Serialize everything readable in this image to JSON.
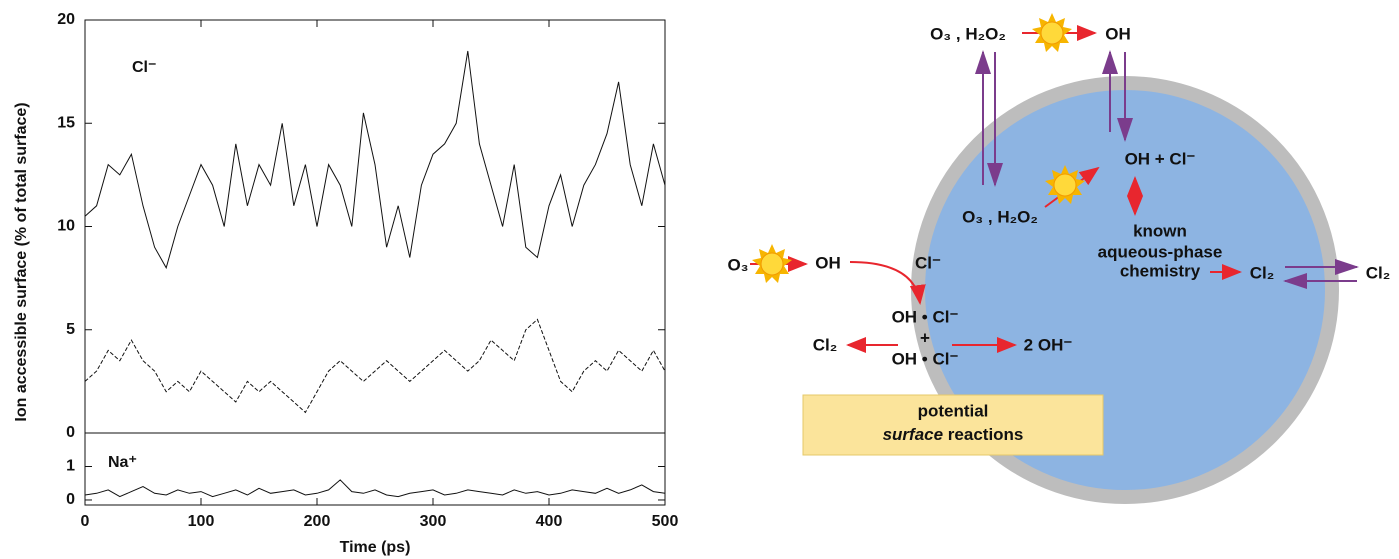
{
  "chart_data": [
    {
      "type": "line",
      "ylabel": "Ion accessible surface (% of total surface)",
      "annotation": "Cl⁻",
      "xlim": [
        0,
        500
      ],
      "ylim": [
        0,
        20
      ],
      "yticks": [
        0,
        5,
        10,
        15,
        20
      ],
      "x": [
        0,
        10,
        20,
        30,
        40,
        50,
        60,
        70,
        80,
        90,
        100,
        110,
        120,
        130,
        140,
        150,
        160,
        170,
        180,
        190,
        200,
        210,
        220,
        230,
        240,
        250,
        260,
        270,
        280,
        290,
        300,
        310,
        320,
        330,
        340,
        350,
        360,
        370,
        380,
        390,
        400,
        410,
        420,
        430,
        440,
        450,
        460,
        470,
        480,
        490,
        500
      ],
      "series": [
        {
          "color": "#111111",
          "dash": false,
          "values": [
            10.5,
            11,
            13,
            12.5,
            13.5,
            11,
            9,
            8,
            10,
            11.5,
            13,
            12,
            10,
            14,
            11,
            13,
            12,
            15,
            11,
            13,
            10,
            13,
            12,
            10,
            15.5,
            13,
            9,
            11,
            8.5,
            12,
            13.5,
            14,
            15,
            18.5,
            14,
            12,
            10,
            13,
            9,
            8.5,
            11,
            12.5,
            10,
            12,
            13,
            14.5,
            17,
            13,
            11,
            14,
            12
          ]
        },
        {
          "color": "#111111",
          "dash": true,
          "values": [
            2.5,
            3,
            4,
            3.5,
            4.5,
            3.5,
            3,
            2,
            2.5,
            2,
            3,
            2.5,
            2,
            1.5,
            2.5,
            2,
            2.5,
            2,
            1.5,
            1,
            2,
            3,
            3.5,
            3,
            2.5,
            3,
            3.5,
            3,
            2.5,
            3,
            3.5,
            4,
            3.5,
            3,
            3.5,
            4.5,
            4,
            3.5,
            5,
            5.5,
            4,
            2.5,
            2,
            3,
            3.5,
            3,
            4,
            3.5,
            3,
            4,
            3
          ]
        }
      ]
    },
    {
      "type": "line",
      "xlabel": "Time (ps)",
      "annotation": "Na⁺",
      "xlim": [
        0,
        500
      ],
      "xticks": [
        0,
        100,
        200,
        300,
        400,
        500
      ],
      "ylim": [
        -0.15,
        2
      ],
      "yticks": [
        0,
        1
      ],
      "x": [
        0,
        10,
        20,
        30,
        40,
        50,
        60,
        70,
        80,
        90,
        100,
        110,
        120,
        130,
        140,
        150,
        160,
        170,
        180,
        190,
        200,
        210,
        220,
        230,
        240,
        250,
        260,
        270,
        280,
        290,
        300,
        310,
        320,
        330,
        340,
        350,
        360,
        370,
        380,
        390,
        400,
        410,
        420,
        430,
        440,
        450,
        460,
        470,
        480,
        490,
        500
      ],
      "series": [
        {
          "color": "#111111",
          "dash": false,
          "values": [
            0.15,
            0.2,
            0.3,
            0.1,
            0.25,
            0.4,
            0.2,
            0.15,
            0.3,
            0.2,
            0.25,
            0.1,
            0.2,
            0.3,
            0.15,
            0.35,
            0.2,
            0.25,
            0.3,
            0.15,
            0.2,
            0.3,
            0.6,
            0.25,
            0.2,
            0.3,
            0.15,
            0.1,
            0.2,
            0.25,
            0.3,
            0.15,
            0.2,
            0.3,
            0.25,
            0.2,
            0.15,
            0.3,
            0.2,
            0.25,
            0.15,
            0.2,
            0.3,
            0.25,
            0.2,
            0.35,
            0.2,
            0.3,
            0.45,
            0.25,
            0.2
          ]
        }
      ]
    }
  ],
  "diagram": {
    "top_left": "O₃ , H₂O₂",
    "top_right": "OH",
    "inner_oh_cl": "OH + Cl⁻",
    "inner_o3_h2o2": "O₃ , H₂O₂",
    "known": [
      "known",
      "aqueous-phase",
      "chemistry"
    ],
    "cl2_inner": "Cl₂",
    "cl2_outer": "Cl₂",
    "o3": "O₃",
    "oh": "OH",
    "cl_minus": "Cl⁻",
    "complex_1": "OH • Cl⁻",
    "plus": "+",
    "complex_2": "OH • Cl⁻",
    "cl2_left": "Cl₂",
    "two_oh": "2 OH⁻",
    "box": {
      "line1": "potential",
      "line2_italic": "surface",
      "line2_rest": " reactions"
    }
  }
}
